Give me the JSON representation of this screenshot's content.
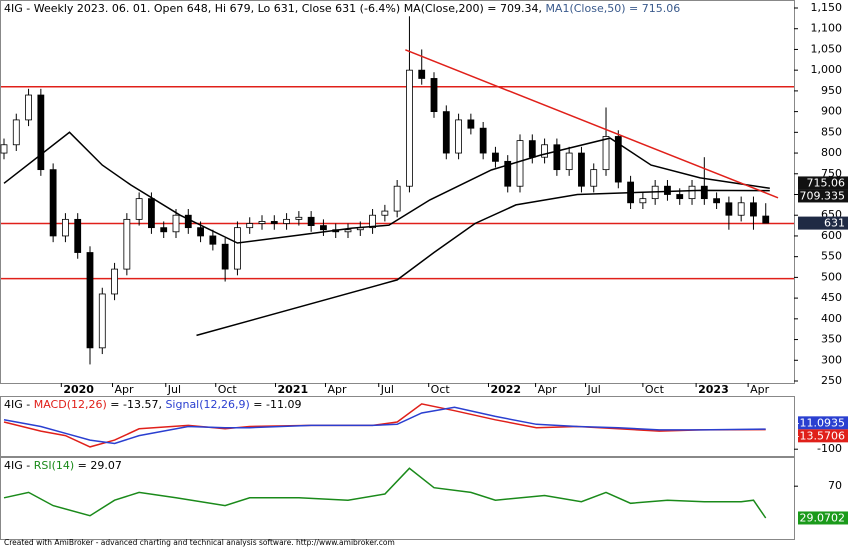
{
  "chart_data": [
    {
      "type": "candlestick",
      "title_parts": [
        {
          "text": "4IG - Weekly 2023. 06. 01. Open 648, Hi 679, Lo 631, Close 631 (-6.4%) ",
          "color": "#000000"
        },
        {
          "text": "MA(Close,200) = 709.34, ",
          "color": "#000000"
        },
        {
          "text": "MA1(Close,50) = 715.06",
          "color": "#3a5a8c"
        }
      ],
      "xlim": [
        -0.73,
        192.9
      ],
      "xticks": [
        {
          "value": 14,
          "label": "2020"
        },
        {
          "value": 26.5,
          "label": "Apr"
        },
        {
          "value": 39.5,
          "label": "Jul"
        },
        {
          "value": 51.7,
          "label": "Oct"
        },
        {
          "value": 66.3,
          "label": "2021"
        },
        {
          "value": 78.5,
          "label": "Apr"
        },
        {
          "value": 91.5,
          "label": "Jul"
        },
        {
          "value": 103.7,
          "label": "Oct"
        },
        {
          "value": 118.3,
          "label": "2022"
        },
        {
          "value": 129.8,
          "label": "Apr"
        },
        {
          "value": 142,
          "label": "Jul"
        },
        {
          "value": 156,
          "label": "Oct"
        },
        {
          "value": 169,
          "label": "2023"
        },
        {
          "value": 181.7,
          "label": "Apr"
        }
      ],
      "ylim": [
        250,
        1150
      ],
      "yticks": [
        250,
        300,
        350,
        400,
        450,
        500,
        550,
        600,
        650,
        700,
        750,
        800,
        850,
        900,
        950,
        {
          "value": 1000,
          "label": "1,000"
        },
        {
          "value": 1050,
          "label": "1,050"
        },
        {
          "value": 1100,
          "label": "1,100"
        },
        {
          "value": 1150,
          "label": "1,150"
        }
      ],
      "candles": {
        "box_color": "#1f2a44",
        "x": [
          0,
          3,
          6,
          9,
          12,
          15,
          18,
          21,
          24,
          27,
          30,
          33,
          36,
          39,
          42,
          45,
          48,
          51,
          54,
          57,
          60,
          63,
          66,
          69,
          72,
          75,
          78,
          81,
          84,
          87,
          90,
          93,
          96,
          99,
          102,
          105,
          108,
          111,
          114,
          117,
          120,
          123,
          126,
          129,
          132,
          135,
          138,
          141,
          144,
          147,
          150,
          153,
          156,
          159,
          162,
          165,
          168,
          171,
          174,
          177,
          180,
          183,
          186
        ],
        "open": [
          800,
          820,
          880,
          940,
          760,
          600,
          640,
          560,
          330,
          460,
          520,
          640,
          690,
          620,
          610,
          650,
          620,
          600,
          580,
          520,
          620,
          630,
          635,
          630,
          640,
          645,
          625,
          615,
          610,
          615,
          620,
          650,
          660,
          720,
          1000,
          980,
          900,
          800,
          880,
          860,
          800,
          780,
          720,
          830,
          790,
          820,
          760,
          800,
          720,
          760,
          840,
          730,
          680,
          690,
          720,
          700,
          690,
          720,
          690,
          680,
          650,
          680,
          648
        ],
        "high": [
          835,
          895,
          955,
          955,
          775,
          655,
          655,
          575,
          475,
          535,
          655,
          705,
          705,
          635,
          665,
          665,
          635,
          615,
          595,
          635,
          645,
          650,
          650,
          655,
          660,
          660,
          640,
          630,
          630,
          635,
          665,
          675,
          735,
          1130,
          1050,
          995,
          915,
          895,
          895,
          875,
          815,
          795,
          845,
          845,
          835,
          835,
          815,
          815,
          775,
          910,
          855,
          745,
          705,
          735,
          735,
          715,
          735,
          790,
          705,
          695,
          695,
          695,
          679
        ],
        "low": [
          785,
          805,
          865,
          745,
          585,
          585,
          545,
          290,
          315,
          445,
          505,
          625,
          605,
          595,
          595,
          605,
          585,
          565,
          490,
          505,
          605,
          615,
          615,
          615,
          625,
          610,
          600,
          595,
          595,
          600,
          605,
          635,
          645,
          705,
          965,
          885,
          785,
          785,
          845,
          785,
          765,
          705,
          705,
          775,
          775,
          745,
          745,
          705,
          705,
          745,
          715,
          665,
          665,
          675,
          685,
          675,
          675,
          675,
          665,
          615,
          635,
          615,
          631
        ],
        "close": [
          820,
          880,
          940,
          760,
          600,
          640,
          560,
          330,
          460,
          520,
          640,
          690,
          620,
          610,
          650,
          620,
          600,
          580,
          520,
          620,
          630,
          635,
          630,
          640,
          645,
          625,
          615,
          610,
          615,
          620,
          650,
          660,
          720,
          1000,
          980,
          900,
          800,
          880,
          860,
          800,
          780,
          720,
          830,
          790,
          820,
          760,
          800,
          720,
          760,
          840,
          730,
          680,
          690,
          720,
          700,
          690,
          720,
          690,
          680,
          650,
          680,
          648,
          631
        ]
      },
      "series": [
        {
          "color": "#000000",
          "box_color": "#111111",
          "x": [
            0,
            16,
            24,
            31,
            43,
            57,
            72,
            85,
            94,
            104,
            119,
            131,
            148,
            158,
            170,
            187
          ],
          "values": [
            727,
            850,
            771,
            723,
            650,
            583,
            602,
            619,
            626,
            687,
            759,
            795,
            836,
            771,
            740,
            715.06
          ]
        },
        {
          "color": "#000000",
          "box_color": "#111111",
          "x": [
            47,
            96,
            105,
            115,
            125,
            140,
            155,
            170,
            187
          ],
          "values": [
            360,
            494,
            560,
            630,
            675,
            700,
            705,
            710,
            709.335
          ]
        }
      ],
      "hlines": [
        960,
        630,
        497
      ],
      "trendline": {
        "x": [
          98,
          189
        ],
        "y": [
          1049,
          692
        ]
      },
      "line_color": "#e0201a"
    },
    {
      "type": "line",
      "title_parts": [
        {
          "text": "4IG - ",
          "color": "#000000"
        },
        {
          "text": "MACD(12,26)",
          "color": "#e0201a"
        },
        {
          "text": " = -13.57, ",
          "color": "#000000"
        },
        {
          "text": "Signal(12,26,9)",
          "color": "#2a3fd0"
        },
        {
          "text": " = -11.09",
          "color": "#000000"
        }
      ],
      "xlim": [
        -0.73,
        192.9
      ],
      "ylim": [
        -130,
        126
      ],
      "yticks": [
        -100
      ],
      "series": [
        {
          "color": "#e0201a",
          "box_color": "#e0201a",
          "x": [
            0,
            9,
            15,
            21,
            27,
            33,
            45,
            54,
            60,
            75,
            90,
            96,
            102,
            110,
            120,
            130,
            140,
            150,
            160,
            170,
            186
          ],
          "values": [
            20,
            -20,
            -40,
            -90,
            -60,
            -10,
            5,
            -10,
            0,
            5,
            5,
            20,
            100,
            70,
            30,
            -5,
            0,
            -10,
            -20,
            -15,
            -13.5706
          ]
        },
        {
          "color": "#2a3fd0",
          "box_color": "#2a3fd0",
          "x": [
            0,
            9,
            15,
            21,
            27,
            33,
            45,
            54,
            60,
            75,
            90,
            96,
            102,
            110,
            120,
            130,
            140,
            150,
            160,
            170,
            186
          ],
          "values": [
            30,
            0,
            -30,
            -60,
            -75,
            -40,
            0,
            -5,
            -5,
            5,
            5,
            10,
            60,
            85,
            45,
            10,
            0,
            -5,
            -15,
            -15,
            -11.0935
          ]
        }
      ]
    },
    {
      "type": "line",
      "title_parts": [
        {
          "text": "4IG - ",
          "color": "#000000"
        },
        {
          "text": "RSI(14)",
          "color": "#1a8a1a"
        },
        {
          "text": " = 29.07",
          "color": "#000000"
        }
      ],
      "xlim": [
        -0.73,
        192.9
      ],
      "ylim": [
        2,
        105
      ],
      "yticks": [
        70
      ],
      "series": [
        {
          "color": "#1a8a1a",
          "box_color": "#1a9a1a",
          "x": [
            0,
            6,
            12,
            21,
            27,
            33,
            42,
            54,
            60,
            72,
            84,
            93,
            99,
            105,
            114,
            120,
            132,
            141,
            147,
            153,
            162,
            171,
            180,
            183,
            186
          ],
          "values": [
            55,
            62,
            45,
            32,
            52,
            62,
            55,
            45,
            55,
            55,
            52,
            60,
            93,
            68,
            62,
            52,
            58,
            50,
            62,
            48,
            52,
            50,
            50,
            52,
            29.0702
          ]
        }
      ]
    }
  ],
  "footer": "Created with AmiBroker - advanced charting and technical analysis software. http://www.amibroker.com"
}
